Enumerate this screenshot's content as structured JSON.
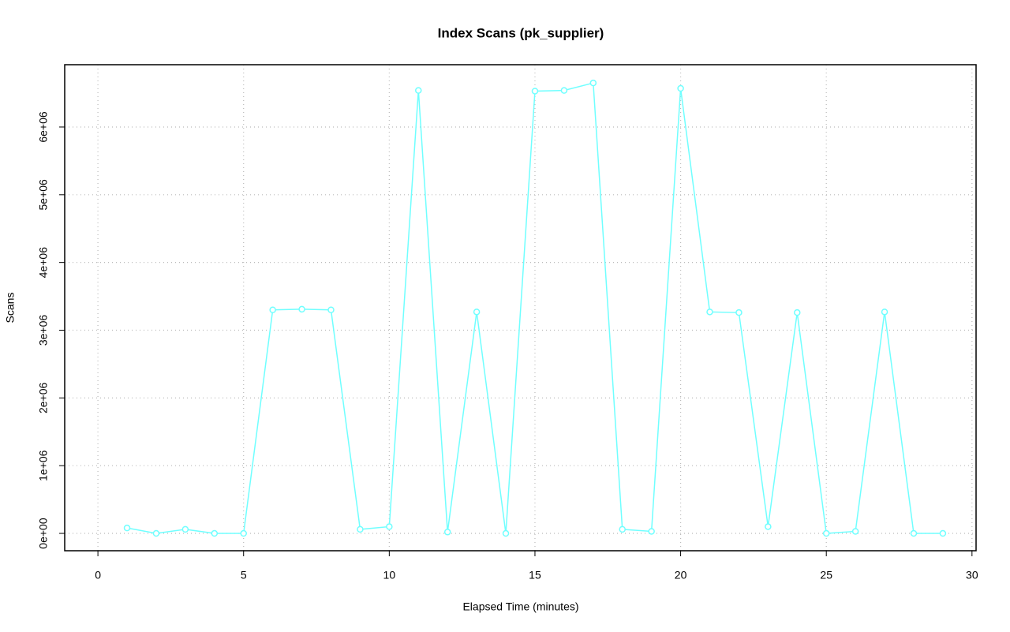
{
  "chart_data": {
    "type": "line",
    "title": "Index Scans (pk_supplier)",
    "x_label": "Elapsed Time (minutes)",
    "y_label": "Scans",
    "x": [
      1,
      2,
      3,
      4,
      5,
      6,
      7,
      8,
      9,
      10,
      11,
      12,
      13,
      14,
      15,
      16,
      17,
      18,
      19,
      20,
      21,
      22,
      23,
      24,
      25,
      26,
      27,
      28,
      29
    ],
    "series": [
      {
        "name": "Scans",
        "color": "#70ffff",
        "values": [
          80000,
          0,
          60000,
          0,
          0,
          3300000,
          3310000,
          3300000,
          60000,
          100000,
          6540000,
          20000,
          3270000,
          0,
          6530000,
          6540000,
          6650000,
          60000,
          30000,
          6570000,
          3270000,
          3260000,
          100000,
          3260000,
          0,
          30000,
          3270000,
          0,
          0
        ]
      }
    ],
    "xlim": [
      -1.14,
      30.14
    ],
    "xticks": [
      0,
      5,
      10,
      15,
      20,
      25,
      30
    ],
    "ylim": [
      -256000,
      6920000
    ],
    "yticks": [
      {
        "value": 0,
        "label": "0e+00"
      },
      {
        "value": 1000000,
        "label": "1e+06"
      },
      {
        "value": 2000000,
        "label": "2e+06"
      },
      {
        "value": 3000000,
        "label": "3e+06"
      },
      {
        "value": 4000000,
        "label": "4e+06"
      },
      {
        "value": 5000000,
        "label": "5e+06"
      },
      {
        "value": 6000000,
        "label": "6e+06"
      }
    ],
    "grid": true
  }
}
